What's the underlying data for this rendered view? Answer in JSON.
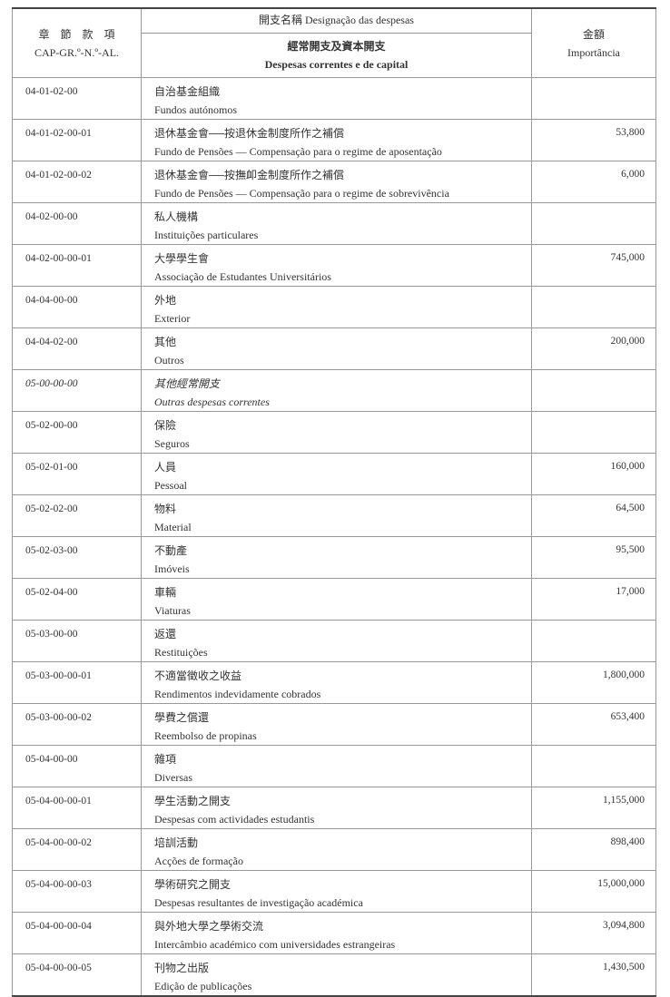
{
  "header": {
    "code_zh": "章　節　款　項",
    "code_pt": "CAP-GR.º-N.º-AL.",
    "designation": "開支名稱 Designação das despesas",
    "section_zh": "經常開支及資本開支",
    "section_pt": "Despesas correntes e de capital",
    "amount_zh": "金額",
    "amount_pt": "Importância"
  },
  "rows": [
    {
      "code": "04-01-02-00",
      "zh": "自治基金組織",
      "pt": "Fundos autónomos",
      "amount": ""
    },
    {
      "code": "04-01-02-00-01",
      "zh": "退休基金會──按退休金制度所作之補償",
      "pt": "Fundo de Pensões — Compensação para o regime de aposentação",
      "amount": "53,800"
    },
    {
      "code": "04-01-02-00-02",
      "zh": "退休基金會──按撫卹金制度所作之補償",
      "pt": "Fundo de Pensões — Compensação para o regime de sobrevivência",
      "amount": "6,000"
    },
    {
      "code": "04-02-00-00",
      "zh": "私人機構",
      "pt": "Instituições particulares",
      "amount": ""
    },
    {
      "code": "04-02-00-00-01",
      "zh": "大學學生會",
      "pt": "Associação de Estudantes Universitários",
      "amount": "745,000"
    },
    {
      "code": "04-04-00-00",
      "zh": "外地",
      "pt": "Exterior",
      "amount": ""
    },
    {
      "code": "04-04-02-00",
      "zh": "其他",
      "pt": "Outros",
      "amount": "200,000"
    },
    {
      "code": "05-00-00-00",
      "zh": "其他經常開支",
      "pt": "Outras despesas correntes",
      "amount": "",
      "italic": true
    },
    {
      "code": "05-02-00-00",
      "zh": "保險",
      "pt": "Seguros",
      "amount": ""
    },
    {
      "code": "05-02-01-00",
      "zh": "人員",
      "pt": "Pessoal",
      "amount": "160,000"
    },
    {
      "code": "05-02-02-00",
      "zh": "物料",
      "pt": "Material",
      "amount": "64,500"
    },
    {
      "code": "05-02-03-00",
      "zh": "不動產",
      "pt": "Imóveis",
      "amount": "95,500"
    },
    {
      "code": "05-02-04-00",
      "zh": "車輛",
      "pt": "Viaturas",
      "amount": "17,000"
    },
    {
      "code": "05-03-00-00",
      "zh": "返還",
      "pt": "Restituições",
      "amount": ""
    },
    {
      "code": "05-03-00-00-01",
      "zh": "不適當徵收之收益",
      "pt": "Rendimentos indevidamente cobrados",
      "amount": "1,800,000"
    },
    {
      "code": "05-03-00-00-02",
      "zh": "學費之償還",
      "pt": "Reembolso de propinas",
      "amount": "653,400"
    },
    {
      "code": "05-04-00-00",
      "zh": "雜項",
      "pt": "Diversas",
      "amount": ""
    },
    {
      "code": "05-04-00-00-01",
      "zh": "學生活動之開支",
      "pt": "Despesas com actividades estudantis",
      "amount": "1,155,000"
    },
    {
      "code": "05-04-00-00-02",
      "zh": "培訓活動",
      "pt": "Acções de formação",
      "amount": "898,400"
    },
    {
      "code": "05-04-00-00-03",
      "zh": "學術研究之開支",
      "pt": "Despesas resultantes de investigação académica",
      "amount": "15,000,000"
    },
    {
      "code": "05-04-00-00-04",
      "zh": "與外地大學之學術交流",
      "pt": "Intercâmbio académico com universidades estrangeiras",
      "amount": "3,094,800"
    },
    {
      "code": "05-04-00-00-05",
      "zh": "刊物之出版",
      "pt": "Edição de publicações",
      "amount": "1,430,500"
    }
  ]
}
